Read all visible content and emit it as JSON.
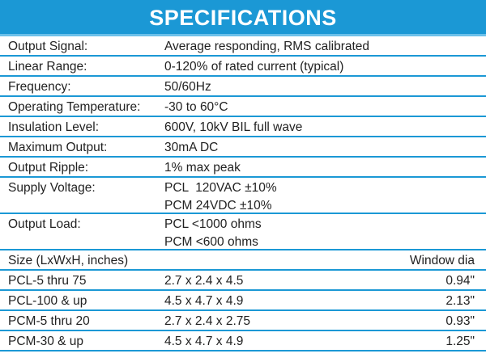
{
  "header": {
    "title": "SPECIFICATIONS"
  },
  "specs": [
    {
      "label": "Output Signal:",
      "value": [
        "Average responding, RMS calibrated"
      ]
    },
    {
      "label": "Linear Range:",
      "value": [
        "0-120% of rated current (typical)"
      ]
    },
    {
      "label": "Frequency:",
      "value": [
        "50/60Hz"
      ]
    },
    {
      "label": "Operating Temperature:",
      "value": [
        "-30 to 60°C"
      ]
    },
    {
      "label": "Insulation Level:",
      "value": [
        "600V, 10kV BIL full wave"
      ]
    },
    {
      "label": "Maximum Output:",
      "value": [
        "30mA DC"
      ]
    },
    {
      "label": "Output Ripple:",
      "value": [
        "1% max peak"
      ]
    },
    {
      "label": "Supply Voltage:",
      "value": [
        "PCL  120VAC ±10%",
        "PCM 24VDC ±10%"
      ]
    },
    {
      "label": "Output Load:",
      "value": [
        "PCL <1000 ohms",
        "PCM <600 ohms"
      ]
    }
  ],
  "sizes": {
    "heading": "Size (LxWxH, inches)",
    "window_heading": "Window dia",
    "rows": [
      {
        "model": "PCL-5 thru 75",
        "dims": "2.7 x 2.4 x 4.5",
        "window": "0.94\""
      },
      {
        "model": "PCL-100 & up",
        "dims": "4.5 x 4.7 x 4.9",
        "window": "2.13\""
      },
      {
        "model": "PCM-5 thru 20",
        "dims": "2.7 x 2.4 x 2.75",
        "window": "0.93\""
      },
      {
        "model": "PCM-30 & up",
        "dims": "4.5 x 4.7 x 4.9",
        "window": "1.25\""
      }
    ]
  }
}
